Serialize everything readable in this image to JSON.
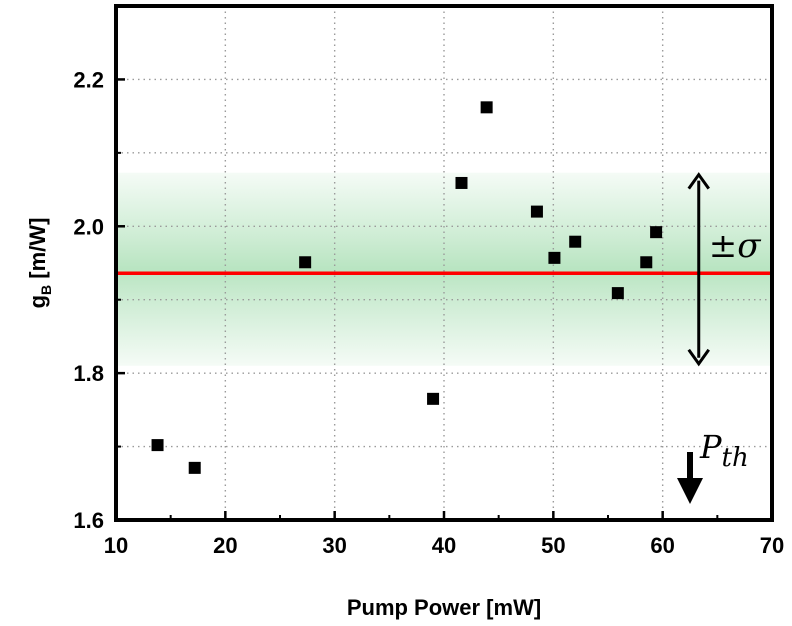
{
  "chart_data": {
    "type": "scatter",
    "xlabel": "Pump Power [mW]",
    "ylabel": "g",
    "ylabel_subscript": "B",
    "ylabel_unit": " [m/W]",
    "xlim": [
      10,
      70
    ],
    "ylim": [
      1.6,
      2.3
    ],
    "x_ticks": [
      "10",
      "20",
      "30",
      "40",
      "50",
      "60",
      "70"
    ],
    "y_ticks": [
      "1.6",
      "1.8",
      "2.0",
      "2.2"
    ],
    "grid": "dotted",
    "series": [
      {
        "marker": "square",
        "color": "#000000",
        "points": [
          {
            "x": 13.8,
            "y": 1.702
          },
          {
            "x": 17.2,
            "y": 1.671
          },
          {
            "x": 27.3,
            "y": 1.951
          },
          {
            "x": 39.0,
            "y": 1.765
          },
          {
            "x": 41.6,
            "y": 2.059
          },
          {
            "x": 43.9,
            "y": 2.162
          },
          {
            "x": 48.5,
            "y": 2.02
          },
          {
            "x": 50.1,
            "y": 1.957
          },
          {
            "x": 52.0,
            "y": 1.979
          },
          {
            "x": 55.9,
            "y": 1.909
          },
          {
            "x": 58.5,
            "y": 1.951
          },
          {
            "x": 59.4,
            "y": 1.992
          }
        ]
      }
    ],
    "mean_line": {
      "y": 1.936,
      "color": "#ff0000"
    },
    "sigma_band": {
      "low": 1.81,
      "high": 2.073,
      "color": "#7fcf8f"
    },
    "annotations": {
      "sigma_label": "±σ",
      "threshold_label_main": "P",
      "threshold_label_sub": "th",
      "threshold_x": 62.5
    }
  }
}
